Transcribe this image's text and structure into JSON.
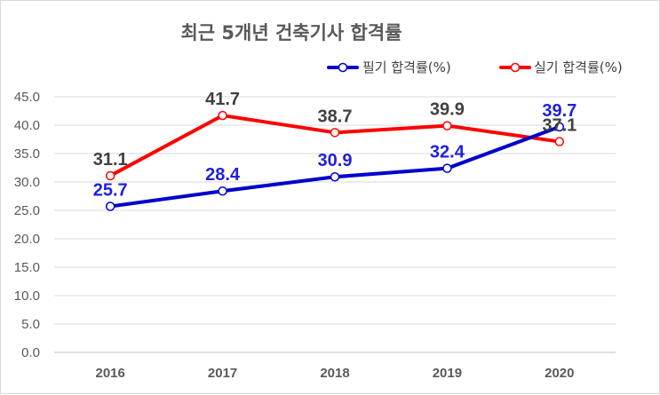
{
  "chart_data": {
    "type": "line",
    "title": "최근 5개년 건축기사 합격률",
    "categories": [
      "2016",
      "2017",
      "2018",
      "2019",
      "2020"
    ],
    "ylim": [
      0,
      45
    ],
    "yticks": [
      "0.0",
      "5.0",
      "10.0",
      "15.0",
      "20.0",
      "25.0",
      "30.0",
      "35.0",
      "40.0",
      "45.0"
    ],
    "grid": true,
    "legend_position": "top-right",
    "series": [
      {
        "name": "필기 합격률(%)",
        "values": [
          25.7,
          28.4,
          30.9,
          32.4,
          39.7
        ],
        "color": "#0000cc",
        "label_color": "#1f1fe0"
      },
      {
        "name": "실기 합격률(%)",
        "values": [
          31.1,
          41.7,
          38.7,
          39.9,
          37.1
        ],
        "color": "#ff0000",
        "label_color": "#404040"
      }
    ]
  }
}
